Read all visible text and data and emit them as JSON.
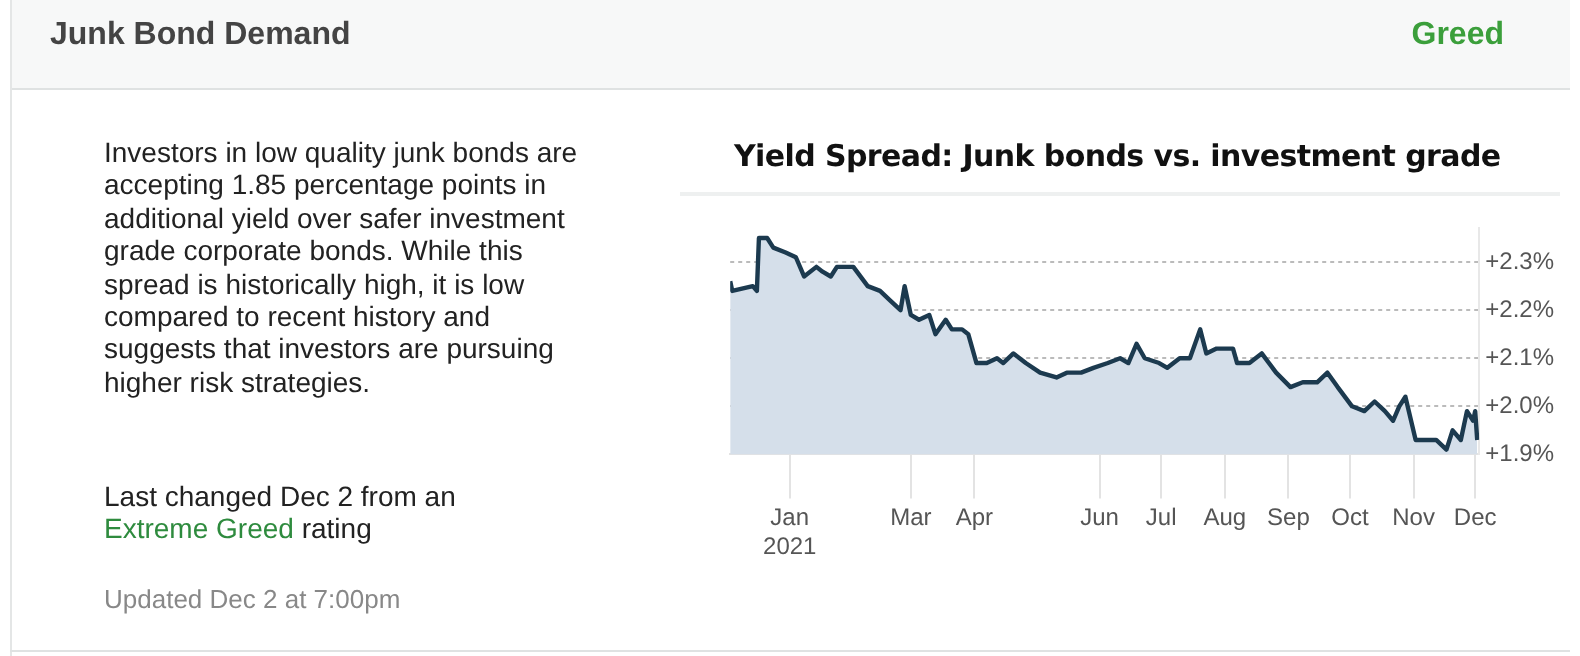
{
  "chart_data": {
    "type": "area",
    "title": "Junk Bond Demand",
    "subtitle": "Yield Spread: Junk bonds vs. investment grade",
    "annotations": [
      "Greed",
      "Investors in low quality junk bonds are accepting 1.85 percentage points in additional yield over safer investment grade corporate bonds. While this spread is historically high, it is low compared to recent history and suggests that investors are pursuing higher risk strategies.",
      "Last changed Dec 2 from an",
      "Extreme Greed",
      "rating",
      "Updated Dec 2 at 7:00pm"
    ],
    "x": [
      "2020-12-03",
      "2020-12-04",
      "2020-12-14",
      "2020-12-16",
      "2020-12-17",
      "2020-12-21",
      "2020-12-24",
      "2020-12-30",
      "2021-01-04",
      "2021-01-08",
      "2021-01-14",
      "2021-01-17",
      "2021-01-21",
      "2021-01-24",
      "2021-01-29",
      "2021-02-01",
      "2021-02-08",
      "2021-02-14",
      "2021-02-19",
      "2021-02-24",
      "2021-02-26",
      "2021-03-01",
      "2021-03-05",
      "2021-03-10",
      "2021-03-13",
      "2021-03-18",
      "2021-03-21",
      "2021-03-26",
      "2021-03-29",
      "2021-04-02",
      "2021-04-07",
      "2021-04-12",
      "2021-04-15",
      "2021-04-20",
      "2021-04-26",
      "2021-05-03",
      "2021-05-11",
      "2021-05-16",
      "2021-05-23",
      "2021-05-29",
      "2021-06-05",
      "2021-06-11",
      "2021-06-15",
      "2021-06-19",
      "2021-06-23",
      "2021-06-30",
      "2021-07-04",
      "2021-07-10",
      "2021-07-15",
      "2021-07-20",
      "2021-07-23",
      "2021-07-28",
      "2021-07-31",
      "2021-08-05",
      "2021-08-07",
      "2021-08-13",
      "2021-08-19",
      "2021-08-26",
      "2021-09-02",
      "2021-09-08",
      "2021-09-15",
      "2021-09-20",
      "2021-09-25",
      "2021-10-02",
      "2021-10-08",
      "2021-10-13",
      "2021-10-18",
      "2021-10-22",
      "2021-10-25",
      "2021-10-28",
      "2021-11-02",
      "2021-11-07",
      "2021-11-12",
      "2021-11-17",
      "2021-11-20",
      "2021-11-24",
      "2021-11-27",
      "2021-11-30",
      "2021-12-01",
      "2021-12-02"
    ],
    "series": [
      {
        "color": "#1c3a4f",
        "values": [
          2.26,
          2.24,
          2.25,
          2.24,
          2.35,
          2.35,
          2.33,
          2.32,
          2.31,
          2.27,
          2.29,
          2.28,
          2.27,
          2.29,
          2.29,
          2.29,
          2.25,
          2.24,
          2.22,
          2.2,
          2.25,
          2.19,
          2.18,
          2.19,
          2.15,
          2.18,
          2.16,
          2.16,
          2.15,
          2.09,
          2.09,
          2.1,
          2.09,
          2.11,
          2.09,
          2.07,
          2.06,
          2.07,
          2.07,
          2.08,
          2.09,
          2.1,
          2.09,
          2.13,
          2.1,
          2.09,
          2.08,
          2.1,
          2.1,
          2.16,
          2.11,
          2.12,
          2.12,
          2.12,
          2.09,
          2.09,
          2.11,
          2.07,
          2.04,
          2.05,
          2.05,
          2.07,
          2.04,
          2.0,
          1.99,
          2.01,
          1.99,
          1.97,
          2.0,
          2.02,
          1.93,
          1.93,
          1.93,
          1.91,
          1.95,
          1.93,
          1.99,
          1.97,
          1.99,
          1.93
        ]
      }
    ],
    "xlim": [
      "2020-12-03",
      "2021-12-03"
    ],
    "xticks": [
      {
        "value": "2021-01-01",
        "label": "Jan\n2021"
      },
      {
        "value": "2021-03-01",
        "label": "Mar"
      },
      {
        "value": "2021-04-01",
        "label": "Apr"
      },
      {
        "value": "2021-06-01",
        "label": "Jun"
      },
      {
        "value": "2021-07-01",
        "label": "Jul"
      },
      {
        "value": "2021-08-01",
        "label": "Aug"
      },
      {
        "value": "2021-09-01",
        "label": "Sep"
      },
      {
        "value": "2021-10-01",
        "label": "Oct"
      },
      {
        "value": "2021-11-01",
        "label": "Nov"
      },
      {
        "value": "2021-12-01",
        "label": "Dec"
      }
    ],
    "ylim": [
      1.9,
      2.37
    ],
    "yticks": [
      {
        "value": 1.9,
        "label": "+1.9%"
      },
      {
        "value": 2.0,
        "label": "+2.0%"
      },
      {
        "value": 2.1,
        "label": "+2.1%"
      },
      {
        "value": 2.2,
        "label": "+2.2%"
      },
      {
        "value": 2.3,
        "label": "+2.3%"
      }
    ],
    "grid": "y",
    "legend": false,
    "marker": "none",
    "line_style": "solid"
  }
}
